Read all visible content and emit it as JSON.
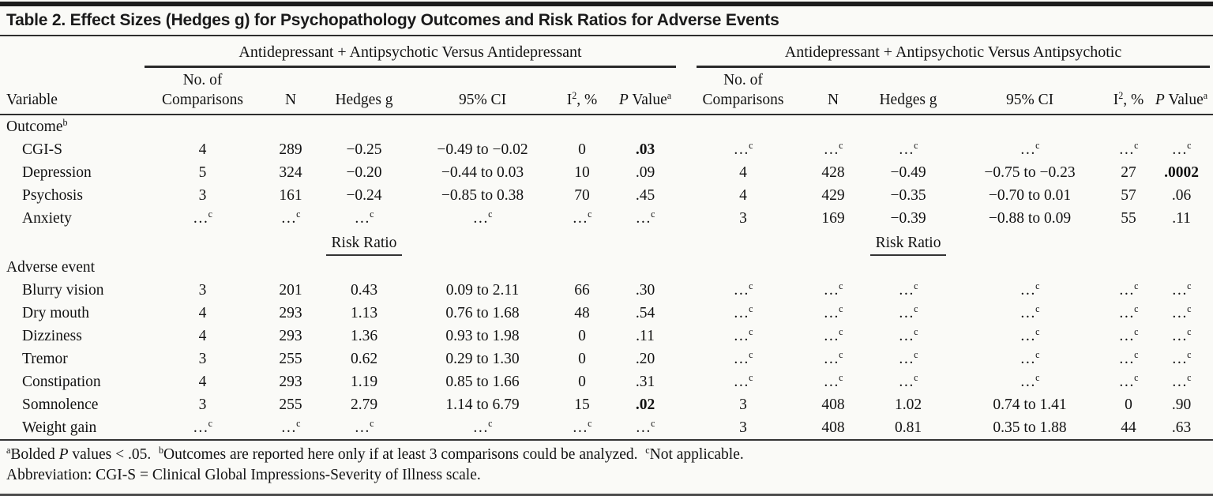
{
  "title": "Table 2. Effect Sizes (Hedges g) for Psychopathology Outcomes and Risk Ratios for Adverse Events",
  "table": {
    "variable_header": "Variable",
    "group1": "Antidepressant + Antipsychotic Versus Antidepressant",
    "group2": "Antidepressant + Antipsychotic Versus Antipsychotic",
    "columns": [
      "No. of\nComparisons",
      "N",
      "Hedges g",
      "95% CI",
      "I{2}, %",
      "_P_ Value{a}"
    ],
    "risk_ratio_label": "Risk Ratio",
    "rows": [
      {
        "type": "section",
        "label": "Outcome{b}",
        "cells": [
          "",
          "",
          "",
          "",
          "",
          "",
          "",
          "",
          "",
          "",
          "",
          ""
        ]
      },
      {
        "type": "data",
        "label": "CGI-S",
        "cells": [
          "4",
          "289",
          "−0.25",
          "−0.49 to −0.02",
          "0",
          "*.03*",
          "…{c}",
          "…{c}",
          "…{c}",
          "…{c}",
          "…{c}",
          "…{c}"
        ]
      },
      {
        "type": "data",
        "label": "Depression",
        "cells": [
          "5",
          "324",
          "−0.20",
          "−0.44 to 0.03",
          "10",
          ".09",
          "4",
          "428",
          "−0.49",
          "−0.75 to −0.23",
          "27",
          "*.0002*"
        ]
      },
      {
        "type": "data",
        "label": "Psychosis",
        "cells": [
          "3",
          "161",
          "−0.24",
          "−0.85 to 0.38",
          "70",
          ".45",
          "4",
          "429",
          "−0.35",
          "−0.70 to 0.01",
          "57",
          ".06"
        ]
      },
      {
        "type": "data",
        "label": "Anxiety",
        "cells": [
          "…{c}",
          "…{c}",
          "…{c}",
          "…{c}",
          "…{c}",
          "…{c}",
          "3",
          "169",
          "−0.39",
          "−0.88 to 0.09",
          "55",
          ".11"
        ]
      },
      {
        "type": "riskratio",
        "label": "",
        "cells": [
          "",
          "",
          "Risk Ratio",
          "",
          "",
          "",
          "",
          "",
          "Risk Ratio",
          "",
          "",
          ""
        ]
      },
      {
        "type": "section",
        "label": "Adverse event",
        "cells": [
          "",
          "",
          "",
          "",
          "",
          "",
          "",
          "",
          "",
          "",
          "",
          ""
        ]
      },
      {
        "type": "data",
        "label": "Blurry vision",
        "cells": [
          "3",
          "201",
          "0.43",
          "0.09 to 2.11",
          "66",
          ".30",
          "…{c}",
          "…{c}",
          "…{c}",
          "…{c}",
          "…{c}",
          "…{c}"
        ]
      },
      {
        "type": "data",
        "label": "Dry mouth",
        "cells": [
          "4",
          "293",
          "1.13",
          "0.76 to 1.68",
          "48",
          ".54",
          "…{c}",
          "…{c}",
          "…{c}",
          "…{c}",
          "…{c}",
          "…{c}"
        ]
      },
      {
        "type": "data",
        "label": "Dizziness",
        "cells": [
          "4",
          "293",
          "1.36",
          "0.93 to 1.98",
          "0",
          ".11",
          "…{c}",
          "…{c}",
          "…{c}",
          "…{c}",
          "…{c}",
          "…{c}"
        ]
      },
      {
        "type": "data",
        "label": "Tremor",
        "cells": [
          "3",
          "255",
          "0.62",
          "0.29 to 1.30",
          "0",
          ".20",
          "…{c}",
          "…{c}",
          "…{c}",
          "…{c}",
          "…{c}",
          "…{c}"
        ]
      },
      {
        "type": "data",
        "label": "Constipation",
        "cells": [
          "4",
          "293",
          "1.19",
          "0.85 to 1.66",
          "0",
          ".31",
          "…{c}",
          "…{c}",
          "…{c}",
          "…{c}",
          "…{c}",
          "…{c}"
        ]
      },
      {
        "type": "data",
        "label": "Somnolence",
        "cells": [
          "3",
          "255",
          "2.79",
          "1.14 to 6.79",
          "15",
          "*.02*",
          "3",
          "408",
          "1.02",
          "0.74 to 1.41",
          "0",
          ".90"
        ]
      },
      {
        "type": "data",
        "label": "Weight gain",
        "cells": [
          "…{c}",
          "…{c}",
          "…{c}",
          "…{c}",
          "…{c}",
          "…{c}",
          "3",
          "408",
          "0.81",
          "0.35 to 1.88",
          "44",
          ".63"
        ]
      }
    ]
  },
  "footnotes": {
    "line1": "{a}Bolded _P_ values < .05.  {b}Outcomes are reported here only if at least 3 comparisons could be analyzed.  {c}Not applicable.",
    "line2": "Abbreviation: CGI-S = Clinical Global Impressions-Severity of Illness scale."
  },
  "colors": {
    "text": "#131313",
    "rule": "#2e2e2e",
    "top_bar": "#1c1c1c",
    "background": "#fafaf7"
  }
}
